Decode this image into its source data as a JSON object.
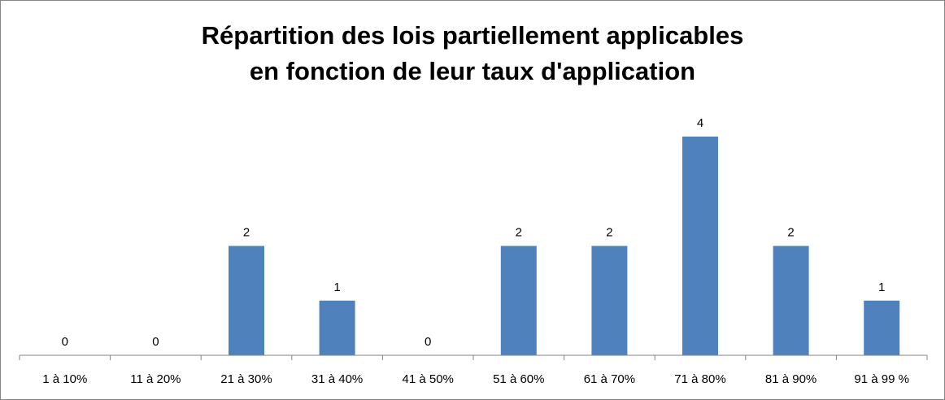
{
  "chart_data": {
    "type": "bar",
    "title_lines": [
      "Répartition des lois partiellement applicables",
      "en fonction de leur taux d'application"
    ],
    "categories": [
      "1 à 10%",
      "11 à 20%",
      "21 à 30%",
      "31 à 40%",
      "41 à 50%",
      "51 à 60%",
      "61 à 70%",
      "71 à 80%",
      "81 à 90%",
      "91 à 99 %"
    ],
    "values": [
      0,
      0,
      2,
      1,
      0,
      2,
      2,
      4,
      2,
      1
    ],
    "data_labels": [
      "0",
      "0",
      "2",
      "1",
      "0",
      "2",
      "2",
      "4",
      "2",
      "1"
    ],
    "xlabel": "",
    "ylabel": "",
    "ylim": [
      0,
      4
    ],
    "grid": false,
    "legend": "none",
    "bar_color": "#4F81BD"
  }
}
